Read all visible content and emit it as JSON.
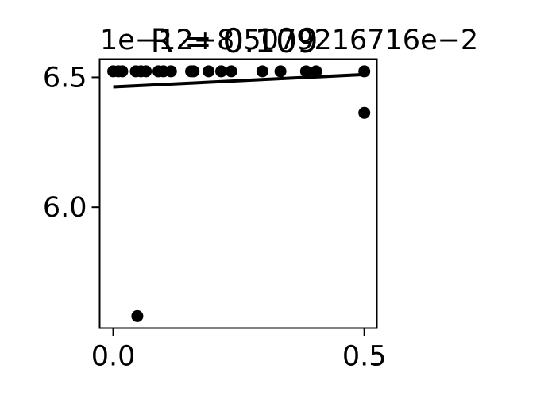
{
  "chart_data": {
    "type": "scatter",
    "title": "R = 0.109",
    "offset_label": "1e−12+8.5079216716e−2",
    "xlabel": "",
    "ylabel": "",
    "xlim": [
      -0.027,
      0.525
    ],
    "ylim": [
      5.535,
      6.57
    ],
    "xticks": [
      {
        "value": 0.0,
        "label": "0.0"
      },
      {
        "value": 0.5,
        "label": "0.5"
      }
    ],
    "yticks": [
      {
        "value": 6.0,
        "label": "6.0"
      },
      {
        "value": 6.5,
        "label": "6.5"
      }
    ],
    "grid": false,
    "points": [
      {
        "x": 0.0,
        "y": 6.523
      },
      {
        "x": 0.01,
        "y": 6.523
      },
      {
        "x": 0.018,
        "y": 6.523
      },
      {
        "x": 0.045,
        "y": 6.523
      },
      {
        "x": 0.055,
        "y": 6.523
      },
      {
        "x": 0.065,
        "y": 6.523
      },
      {
        "x": 0.09,
        "y": 6.523
      },
      {
        "x": 0.1,
        "y": 6.523
      },
      {
        "x": 0.115,
        "y": 6.523
      },
      {
        "x": 0.155,
        "y": 6.523
      },
      {
        "x": 0.16,
        "y": 6.523
      },
      {
        "x": 0.19,
        "y": 6.523
      },
      {
        "x": 0.215,
        "y": 6.523
      },
      {
        "x": 0.235,
        "y": 6.523
      },
      {
        "x": 0.297,
        "y": 6.523
      },
      {
        "x": 0.333,
        "y": 6.523
      },
      {
        "x": 0.384,
        "y": 6.523
      },
      {
        "x": 0.404,
        "y": 6.523
      },
      {
        "x": 0.5,
        "y": 6.523
      },
      {
        "x": 0.5,
        "y": 6.363
      },
      {
        "x": 0.048,
        "y": 5.581
      }
    ],
    "fit_line": {
      "x": [
        0.0,
        0.5
      ],
      "y": [
        6.463,
        6.511
      ]
    },
    "colors": {
      "points": "#000000",
      "fit_line": "#000000",
      "axes": "#000000",
      "background": "#ffffff"
    }
  }
}
